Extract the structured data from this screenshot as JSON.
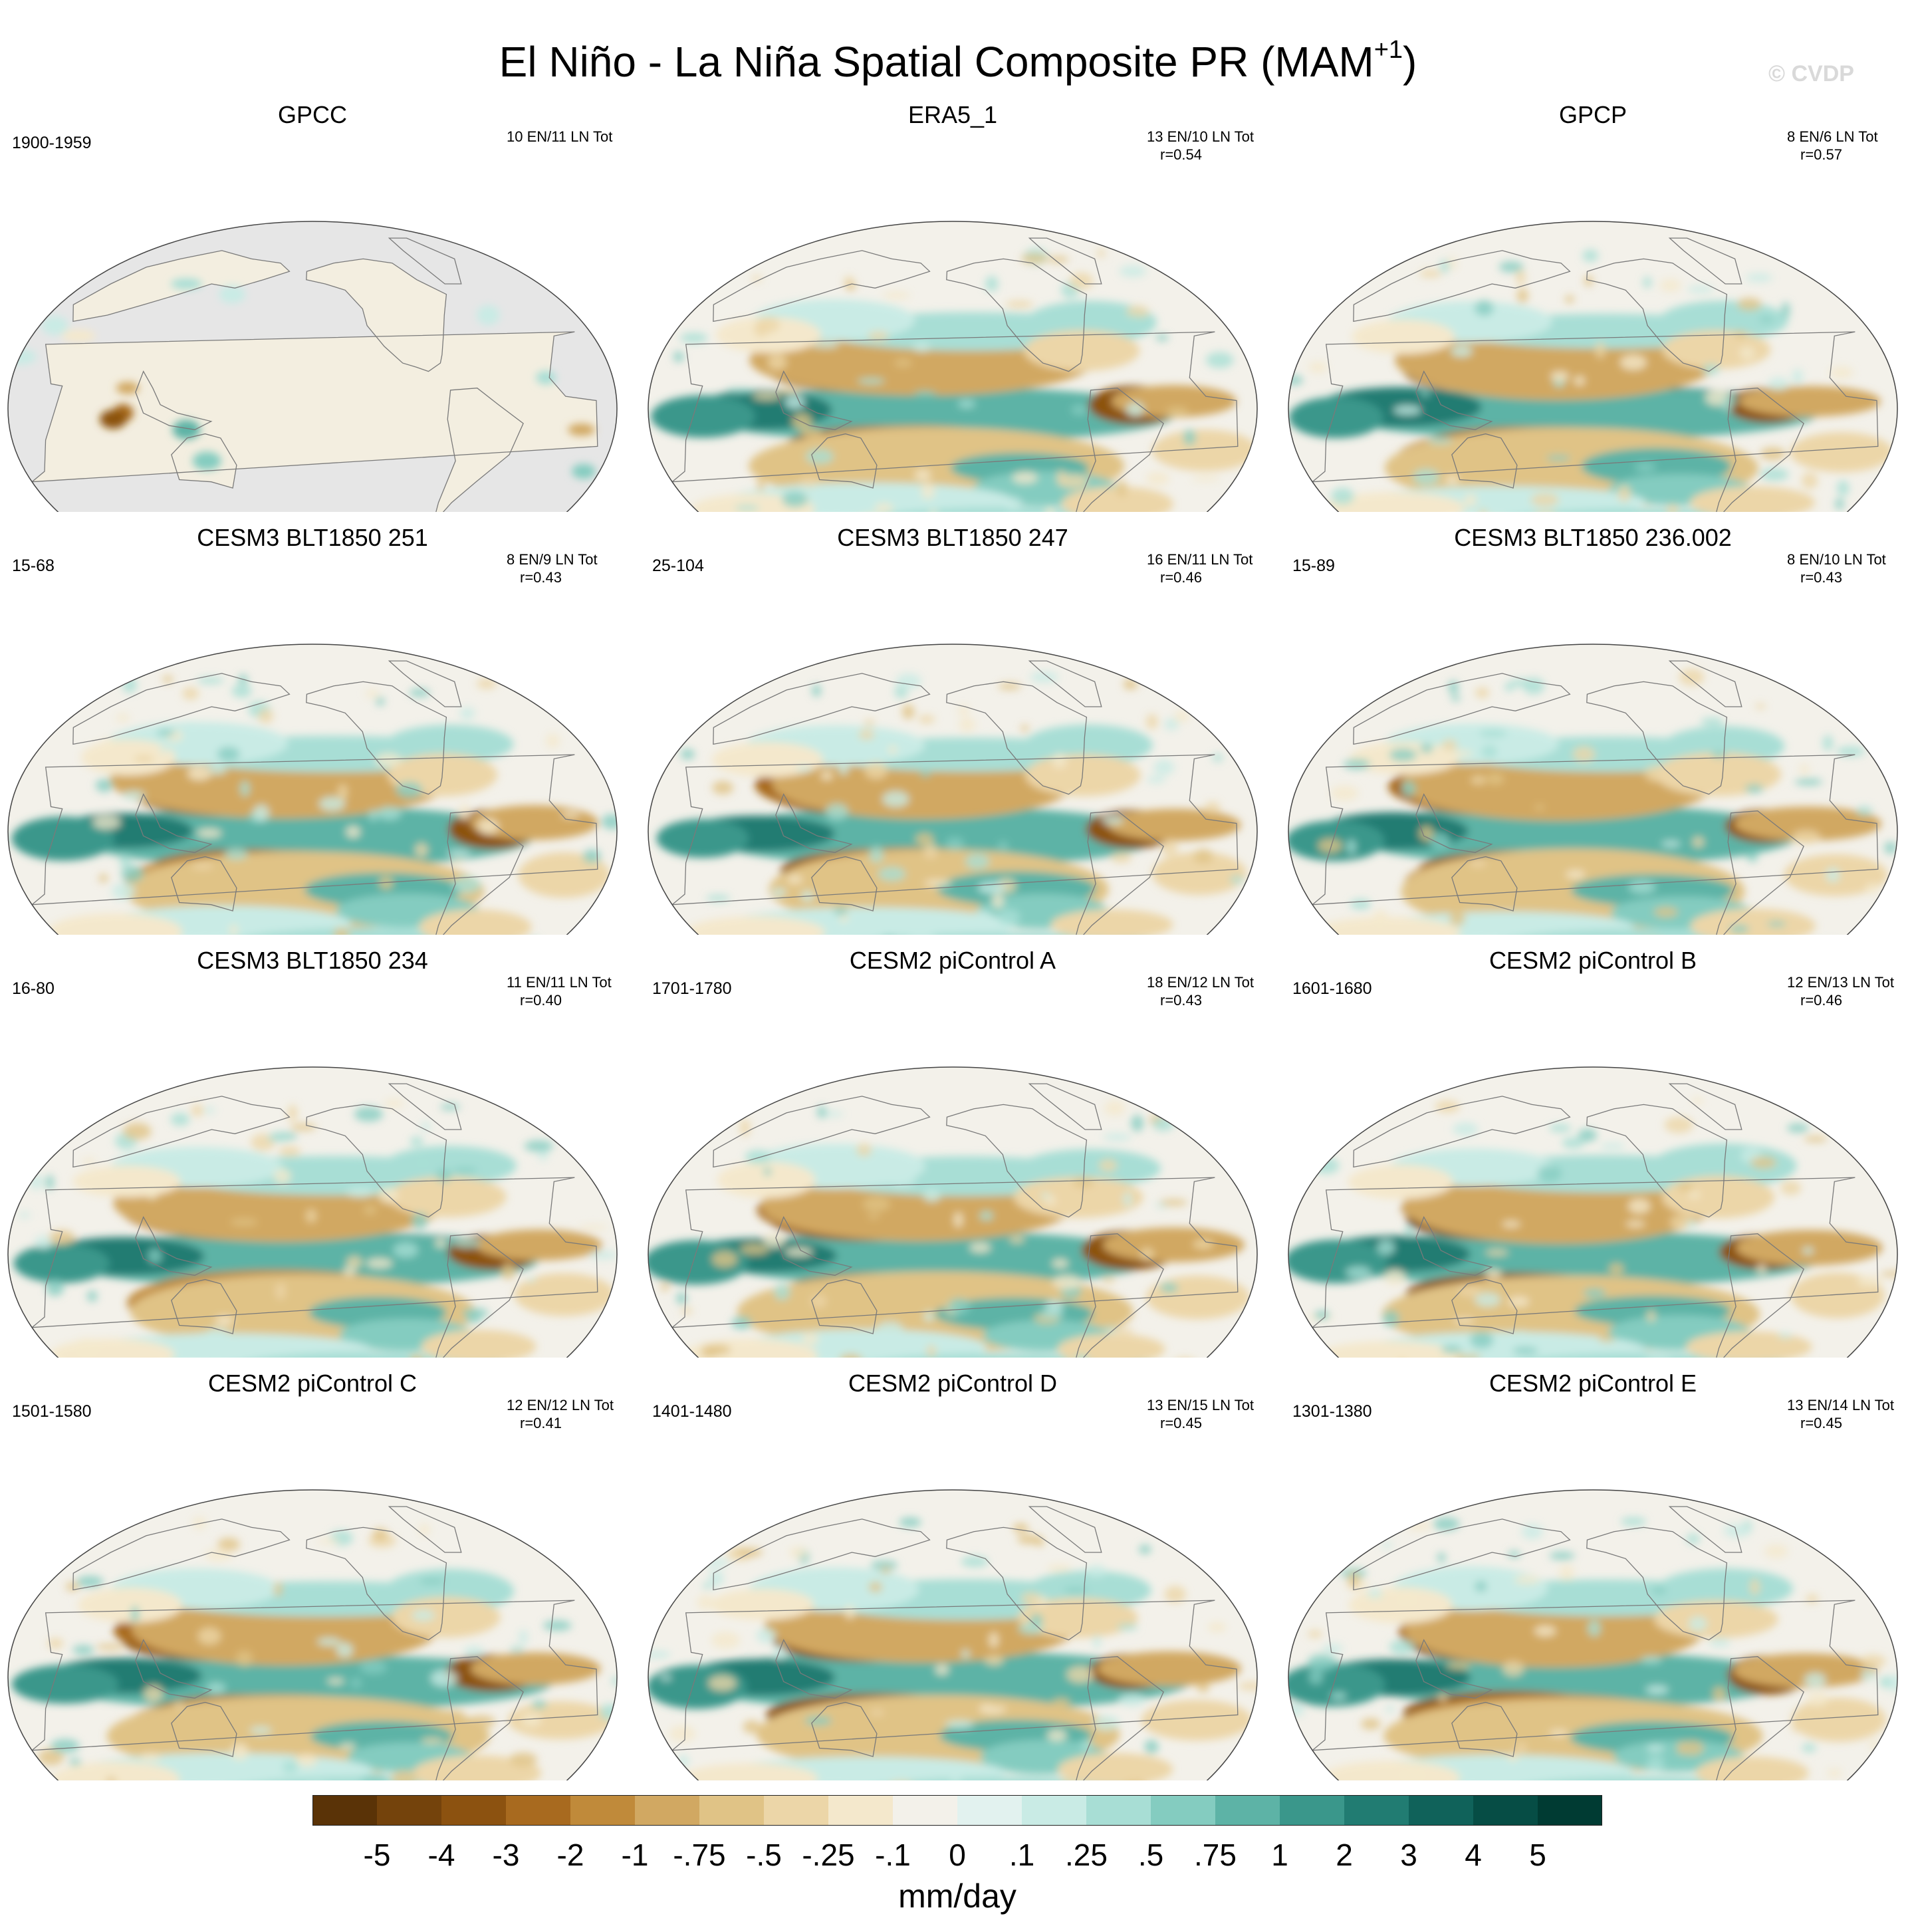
{
  "title_main": "El Niño - La Niña Spatial Composite PR (MAM",
  "title_sup": "+1",
  "title_end": ")",
  "watermark": "© CVDP",
  "chart_data": {
    "type": "map-grid",
    "variable": "PR",
    "units": "mm/day",
    "colorbar": {
      "levels": [
        "-5",
        "-4",
        "-3",
        "-2",
        "-1",
        "-.75",
        "-.5",
        "-.25",
        "-.1",
        "0",
        ".1",
        ".25",
        ".5",
        ".75",
        "1",
        "2",
        "3",
        "4",
        "5"
      ],
      "colors": [
        "#5a3307",
        "#74430c",
        "#8c5210",
        "#a86a1f",
        "#c08a3a",
        "#d1a862",
        "#e0c386",
        "#ecd6a8",
        "#f4e8cc",
        "#f3f1ea",
        "#e2f2ef",
        "#c9ebe5",
        "#a8ded5",
        "#84ccc0",
        "#5db3a6",
        "#3a978b",
        "#217c72",
        "#10625a",
        "#064d45",
        "#003b33"
      ],
      "label": "mm/day"
    },
    "panels": [
      {
        "name": "GPCC",
        "period": "1900-1959",
        "stats": "10 EN/11 LN Tot",
        "r": "",
        "land_only": true
      },
      {
        "name": "ERA5_1",
        "period": "",
        "stats": "13 EN/10 LN Tot",
        "r": "r=0.54",
        "land_only": false
      },
      {
        "name": "GPCP",
        "period": "",
        "stats": "8 EN/6 LN Tot",
        "r": "r=0.57",
        "land_only": false
      },
      {
        "name": "CESM3 BLT1850 251",
        "period": "15-68",
        "stats": "8 EN/9 LN Tot",
        "r": "r=0.43",
        "land_only": false
      },
      {
        "name": "CESM3 BLT1850 247",
        "period": "25-104",
        "stats": "16 EN/11 LN Tot",
        "r": "r=0.46",
        "land_only": false
      },
      {
        "name": "CESM3 BLT1850 236.002",
        "period": "15-89",
        "stats": "8 EN/10 LN Tot",
        "r": "r=0.43",
        "land_only": false
      },
      {
        "name": "CESM3 BLT1850 234",
        "period": "16-80",
        "stats": "11 EN/11 LN Tot",
        "r": "r=0.40",
        "land_only": false
      },
      {
        "name": "CESM2 piControl A",
        "period": "1701-1780",
        "stats": "18 EN/12 LN Tot",
        "r": "r=0.43",
        "land_only": false
      },
      {
        "name": "CESM2 piControl B",
        "period": "1601-1680",
        "stats": "12 EN/13 LN Tot",
        "r": "r=0.46",
        "land_only": false
      },
      {
        "name": "CESM2 piControl C",
        "period": "1501-1580",
        "stats": "12 EN/12 LN Tot",
        "r": "r=0.41",
        "land_only": false
      },
      {
        "name": "CESM2 piControl D",
        "period": "1401-1480",
        "stats": "13 EN/15 LN Tot",
        "r": "r=0.45",
        "land_only": false
      },
      {
        "name": "CESM2 piControl E",
        "period": "1301-1380",
        "stats": "13 EN/14 LN Tot",
        "r": "r=0.45",
        "land_only": false
      }
    ]
  }
}
